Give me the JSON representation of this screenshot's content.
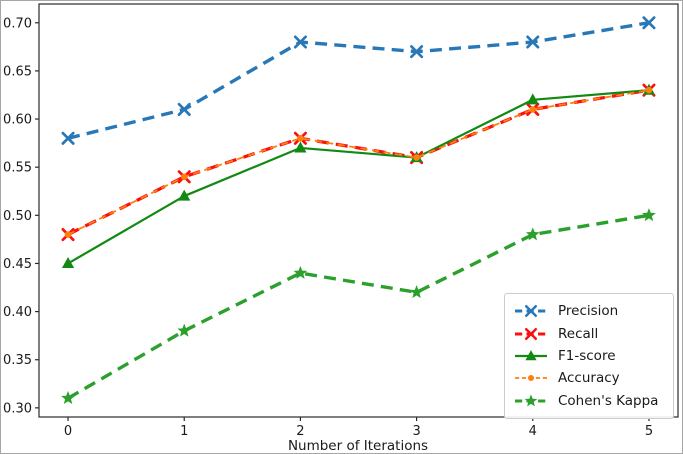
{
  "figure": {
    "background": "#ffffff",
    "spine_color": "#2a2a2a"
  },
  "chart_data": {
    "type": "line",
    "title": "",
    "xlabel": "Number of Iterations",
    "ylabel": "",
    "x": [
      0,
      1,
      2,
      3,
      4,
      5
    ],
    "xlim": [
      -0.25,
      5.25
    ],
    "ylim": [
      0.2905,
      0.7195
    ],
    "xticks": [
      0,
      1,
      2,
      3,
      4,
      5
    ],
    "xtick_labels": [
      "0",
      "1",
      "2",
      "3",
      "4",
      "5"
    ],
    "yticks": [
      0.3,
      0.35,
      0.4,
      0.45,
      0.5,
      0.55,
      0.6,
      0.65,
      0.7
    ],
    "ytick_labels": [
      "0.30",
      "0.35",
      "0.40",
      "0.45",
      "0.50",
      "0.55",
      "0.60",
      "0.65",
      "0.70"
    ],
    "grid": false,
    "legend_position": "lower right",
    "series": [
      {
        "name": "Precision",
        "values": [
          0.58,
          0.61,
          0.68,
          0.67,
          0.68,
          0.7
        ],
        "color": "#2878b8",
        "line": "dashed",
        "marker": "x",
        "width": 3.4
      },
      {
        "name": "Recall",
        "values": [
          0.48,
          0.54,
          0.58,
          0.56,
          0.61,
          0.63
        ],
        "color": "#fb1010",
        "line": "dashed",
        "marker": "x",
        "width": 3.2
      },
      {
        "name": "F1-score",
        "values": [
          0.45,
          0.52,
          0.57,
          0.56,
          0.62,
          0.63
        ],
        "color": "#128a12",
        "line": "solid",
        "marker": "triangle",
        "width": 2.2
      },
      {
        "name": "Accuracy",
        "values": [
          0.48,
          0.54,
          0.58,
          0.56,
          0.61,
          0.63
        ],
        "color": "#ff7f0e",
        "line": "dashed-fine",
        "marker": "dot",
        "width": 1.8
      },
      {
        "name": "Cohen's Kappa",
        "values": [
          0.31,
          0.38,
          0.44,
          0.42,
          0.48,
          0.5
        ],
        "color": "#2ca02c",
        "line": "dashed",
        "marker": "star",
        "width": 3.4
      }
    ]
  }
}
